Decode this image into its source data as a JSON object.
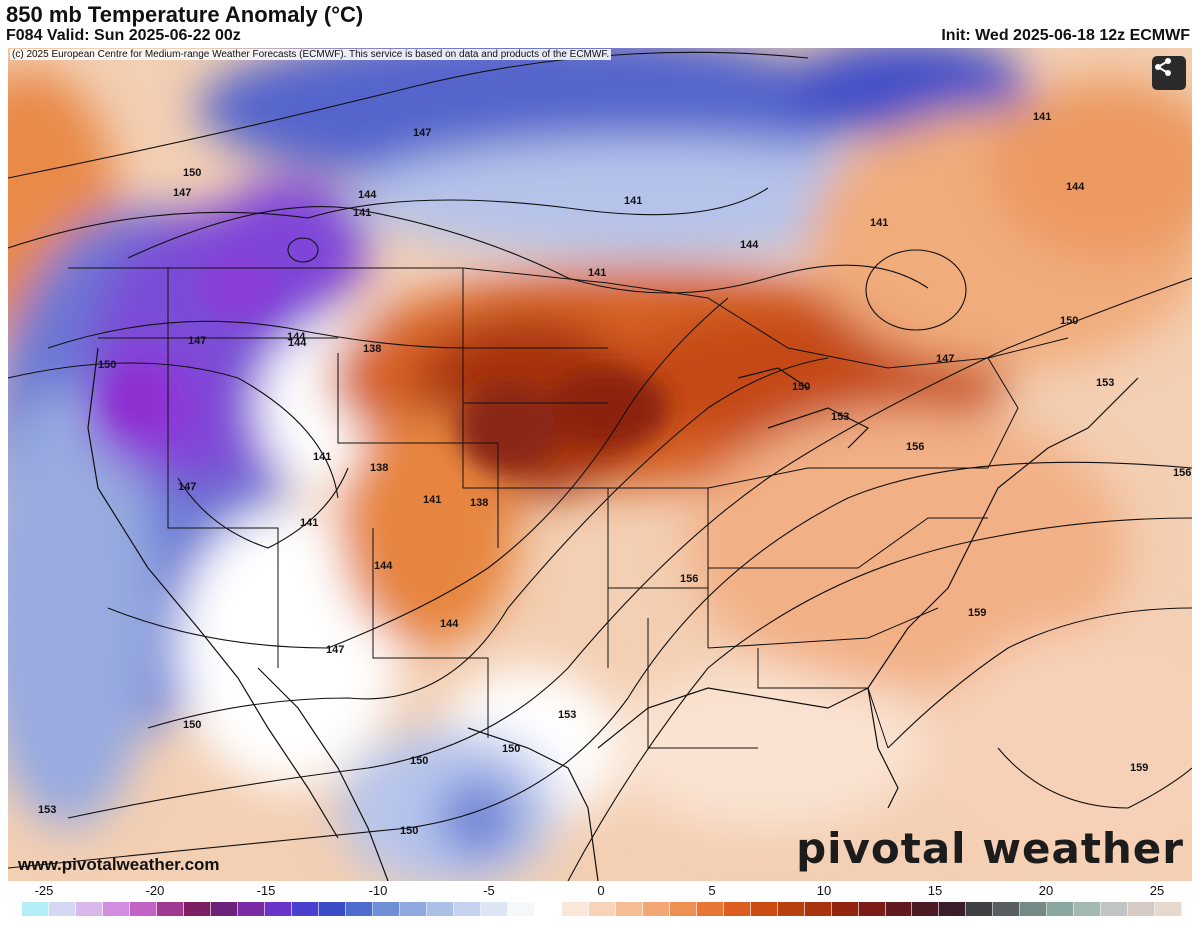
{
  "header": {
    "title": "850 mb Temperature Anomaly (°C)",
    "valid": "F084 Valid: Sun 2025-06-22 00z",
    "init": "Init: Wed 2025-06-18 12z ECMWF"
  },
  "map": {
    "copyright": "(c) 2025 European Centre for Medium-range Weather Forecasts (ECMWF). This service is based on data and products of the ECMWF.",
    "share_icon": "share-icon",
    "site_url": "www.pivotalweather.com",
    "logo_text": "pivotal weather",
    "contour_labels": [
      "147",
      "150",
      "147",
      "144",
      "141",
      "141",
      "144",
      "144",
      "138",
      "147",
      "144",
      "141",
      "141",
      "138",
      "141",
      "138",
      "141",
      "144",
      "144",
      "147",
      "150",
      "147",
      "150",
      "153",
      "150",
      "150",
      "150",
      "153",
      "141",
      "144",
      "141",
      "150",
      "147",
      "150",
      "153",
      "156",
      "153",
      "156",
      "156",
      "159",
      "159"
    ]
  },
  "colorbar": {
    "labels": [
      "-25",
      "-20",
      "-15",
      "-10",
      "-5",
      "0",
      "5",
      "10",
      "15",
      "20",
      "25"
    ],
    "colors": [
      "#b4eef8",
      "#d4d8f2",
      "#d9b9ec",
      "#d18ee0",
      "#c262c4",
      "#9e3a8f",
      "#7c1f63",
      "#6e2179",
      "#7a2ca6",
      "#6a33c9",
      "#4a3fcf",
      "#3a4bc8",
      "#4e6bd0",
      "#6f8ed8",
      "#8fa9df",
      "#acc0e6",
      "#c6d3ee",
      "#dde5f5",
      "#f5f7fb",
      "#ffffff",
      "#fbe7d9",
      "#f8d3b8",
      "#f5bd95",
      "#f2a774",
      "#ee9052",
      "#e77634",
      "#db5e1e",
      "#cc4e15",
      "#b9400f",
      "#a8330d",
      "#932510",
      "#7a1c18",
      "#62181f",
      "#4b1a25",
      "#3a1e2a",
      "#3f3f44",
      "#5b5e60",
      "#758a85",
      "#8aa8a0",
      "#a3b8b0",
      "#c1c4c2",
      "#d6cbc4",
      "#e8d9cf"
    ]
  }
}
